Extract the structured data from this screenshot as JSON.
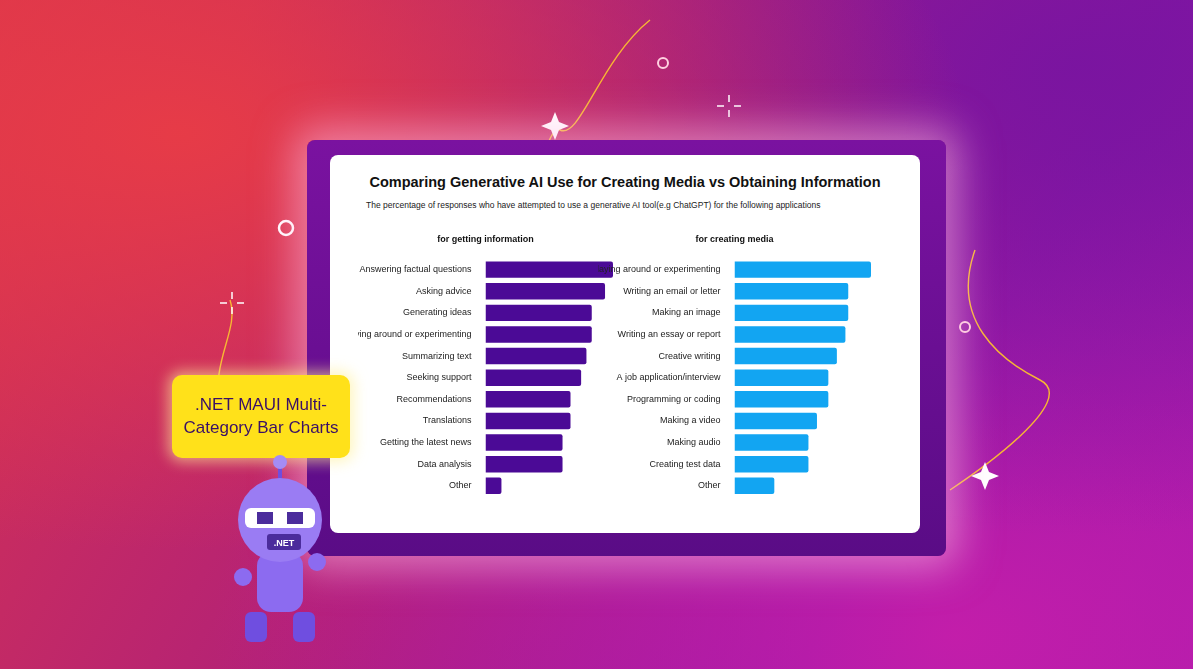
{
  "page": {
    "title": "Comparing Generative AI Use for Creating Media vs Obtaining Information",
    "subtitle": "The percentage of responses who have attempted to use a generative AI tool(e.g ChatGPT) for the following applications",
    "callout": ".NET MAUI Multi-Category Bar Charts",
    "badge": ".NET"
  },
  "chart_data": [
    {
      "type": "bar",
      "orientation": "horizontal",
      "title": "for getting information",
      "categories": [
        "Answering factual questions",
        "Asking advice",
        "Generating ideas",
        "Playing around or experimenting",
        "Summarizing text",
        "Seeking support",
        "Recommendations",
        "Translations",
        "Getting the latest news",
        "Data analysis",
        "Other"
      ],
      "values": [
        24,
        22.5,
        20,
        20,
        19,
        18,
        16,
        16,
        14.5,
        14.5,
        3
      ],
      "color": "#4b0a96",
      "xlim": [
        0,
        24
      ],
      "tick_labels": "y",
      "grid": false
    },
    {
      "type": "bar",
      "orientation": "horizontal",
      "title": "for creating media",
      "categories": [
        "Playing around or experimenting",
        "Writing an email or letter",
        "Making an image",
        "Writing an essay or report",
        "Creative writing",
        "A job application/interview",
        "Programming or coding",
        "Making a video",
        "Making audio",
        "Creating test data",
        "Other"
      ],
      "values": [
        24,
        20,
        20,
        19.5,
        18,
        16.5,
        16.5,
        14.5,
        13,
        13,
        7
      ],
      "color": "#12a5f2",
      "xlim": [
        0,
        24
      ],
      "tick_labels": "y",
      "grid": false
    }
  ]
}
